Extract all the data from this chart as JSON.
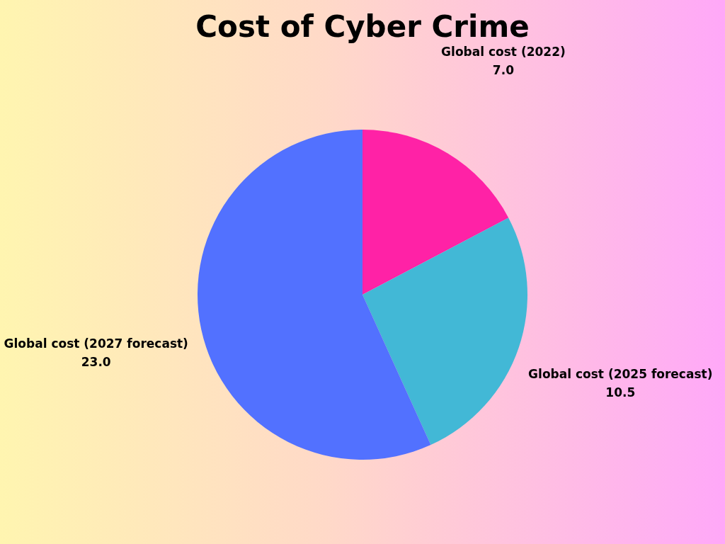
{
  "chart_data": {
    "type": "pie",
    "title": "Cost of Cyber Crime",
    "categories": [
      "Global cost (2022)",
      "Global cost (2025 forecast)",
      "Global cost (2027 forecast)"
    ],
    "values": [
      7.0,
      10.5,
      23.0
    ],
    "value_labels": [
      "7.0",
      "10.5",
      "23.0"
    ],
    "colors": [
      "#ff22a6",
      "#42b8d6",
      "#5271ff"
    ],
    "legend": false
  }
}
